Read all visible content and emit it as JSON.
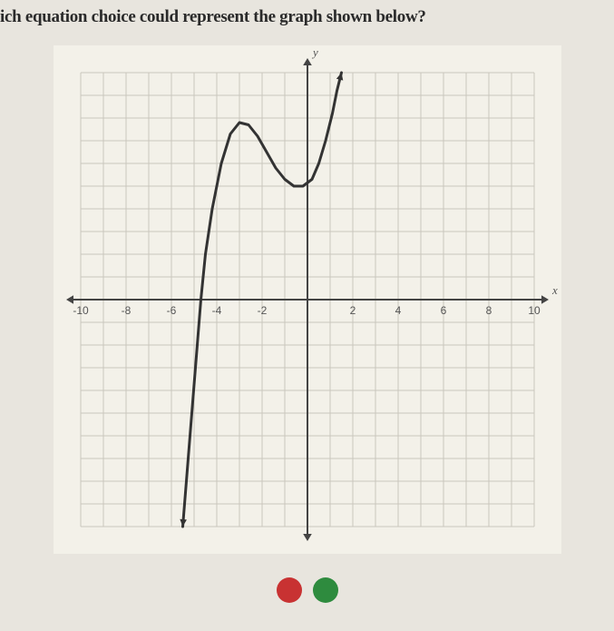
{
  "question": "ich equation choice could represent the graph shown below?",
  "graph": {
    "type": "line",
    "xlim": [
      -10,
      10
    ],
    "ylim": [
      -10,
      10
    ],
    "xtick_step": 1,
    "ytick_step": 1,
    "xlabel_step": 2,
    "xlabels": [
      "-10",
      "-8",
      "-6",
      "-4",
      "-2",
      "",
      "2",
      "4",
      "6",
      "8",
      "10"
    ],
    "xlabel_ticks": [
      -10,
      -8,
      -6,
      -4,
      -2,
      0,
      2,
      4,
      6,
      8,
      10
    ],
    "axis_x_name": "x",
    "axis_y_name": "y",
    "background_color": "#f3f1e9",
    "grid_color_minor": "#c9c6bd",
    "axis_color": "#444444",
    "curve_color": "#333333",
    "curve_width": 3,
    "arrow_size": 8,
    "curve_points": [
      [
        -5.5,
        -10
      ],
      [
        -5.3,
        -7.5
      ],
      [
        -5.1,
        -5
      ],
      [
        -4.9,
        -2.5
      ],
      [
        -4.7,
        0
      ],
      [
        -4.5,
        2
      ],
      [
        -4.2,
        4
      ],
      [
        -3.8,
        6
      ],
      [
        -3.4,
        7.3
      ],
      [
        -3.0,
        7.8
      ],
      [
        -2.6,
        7.7
      ],
      [
        -2.2,
        7.2
      ],
      [
        -1.8,
        6.5
      ],
      [
        -1.4,
        5.8
      ],
      [
        -1.0,
        5.3
      ],
      [
        -0.6,
        5.0
      ],
      [
        -0.2,
        5.0
      ],
      [
        0.2,
        5.3
      ],
      [
        0.5,
        6.0
      ],
      [
        0.8,
        7.0
      ],
      [
        1.1,
        8.2
      ],
      [
        1.3,
        9.2
      ],
      [
        1.5,
        10
      ]
    ],
    "start_arrow": true,
    "end_arrow": true
  },
  "dots": {
    "colors": [
      "#c83232",
      "#2e8b3e"
    ]
  }
}
